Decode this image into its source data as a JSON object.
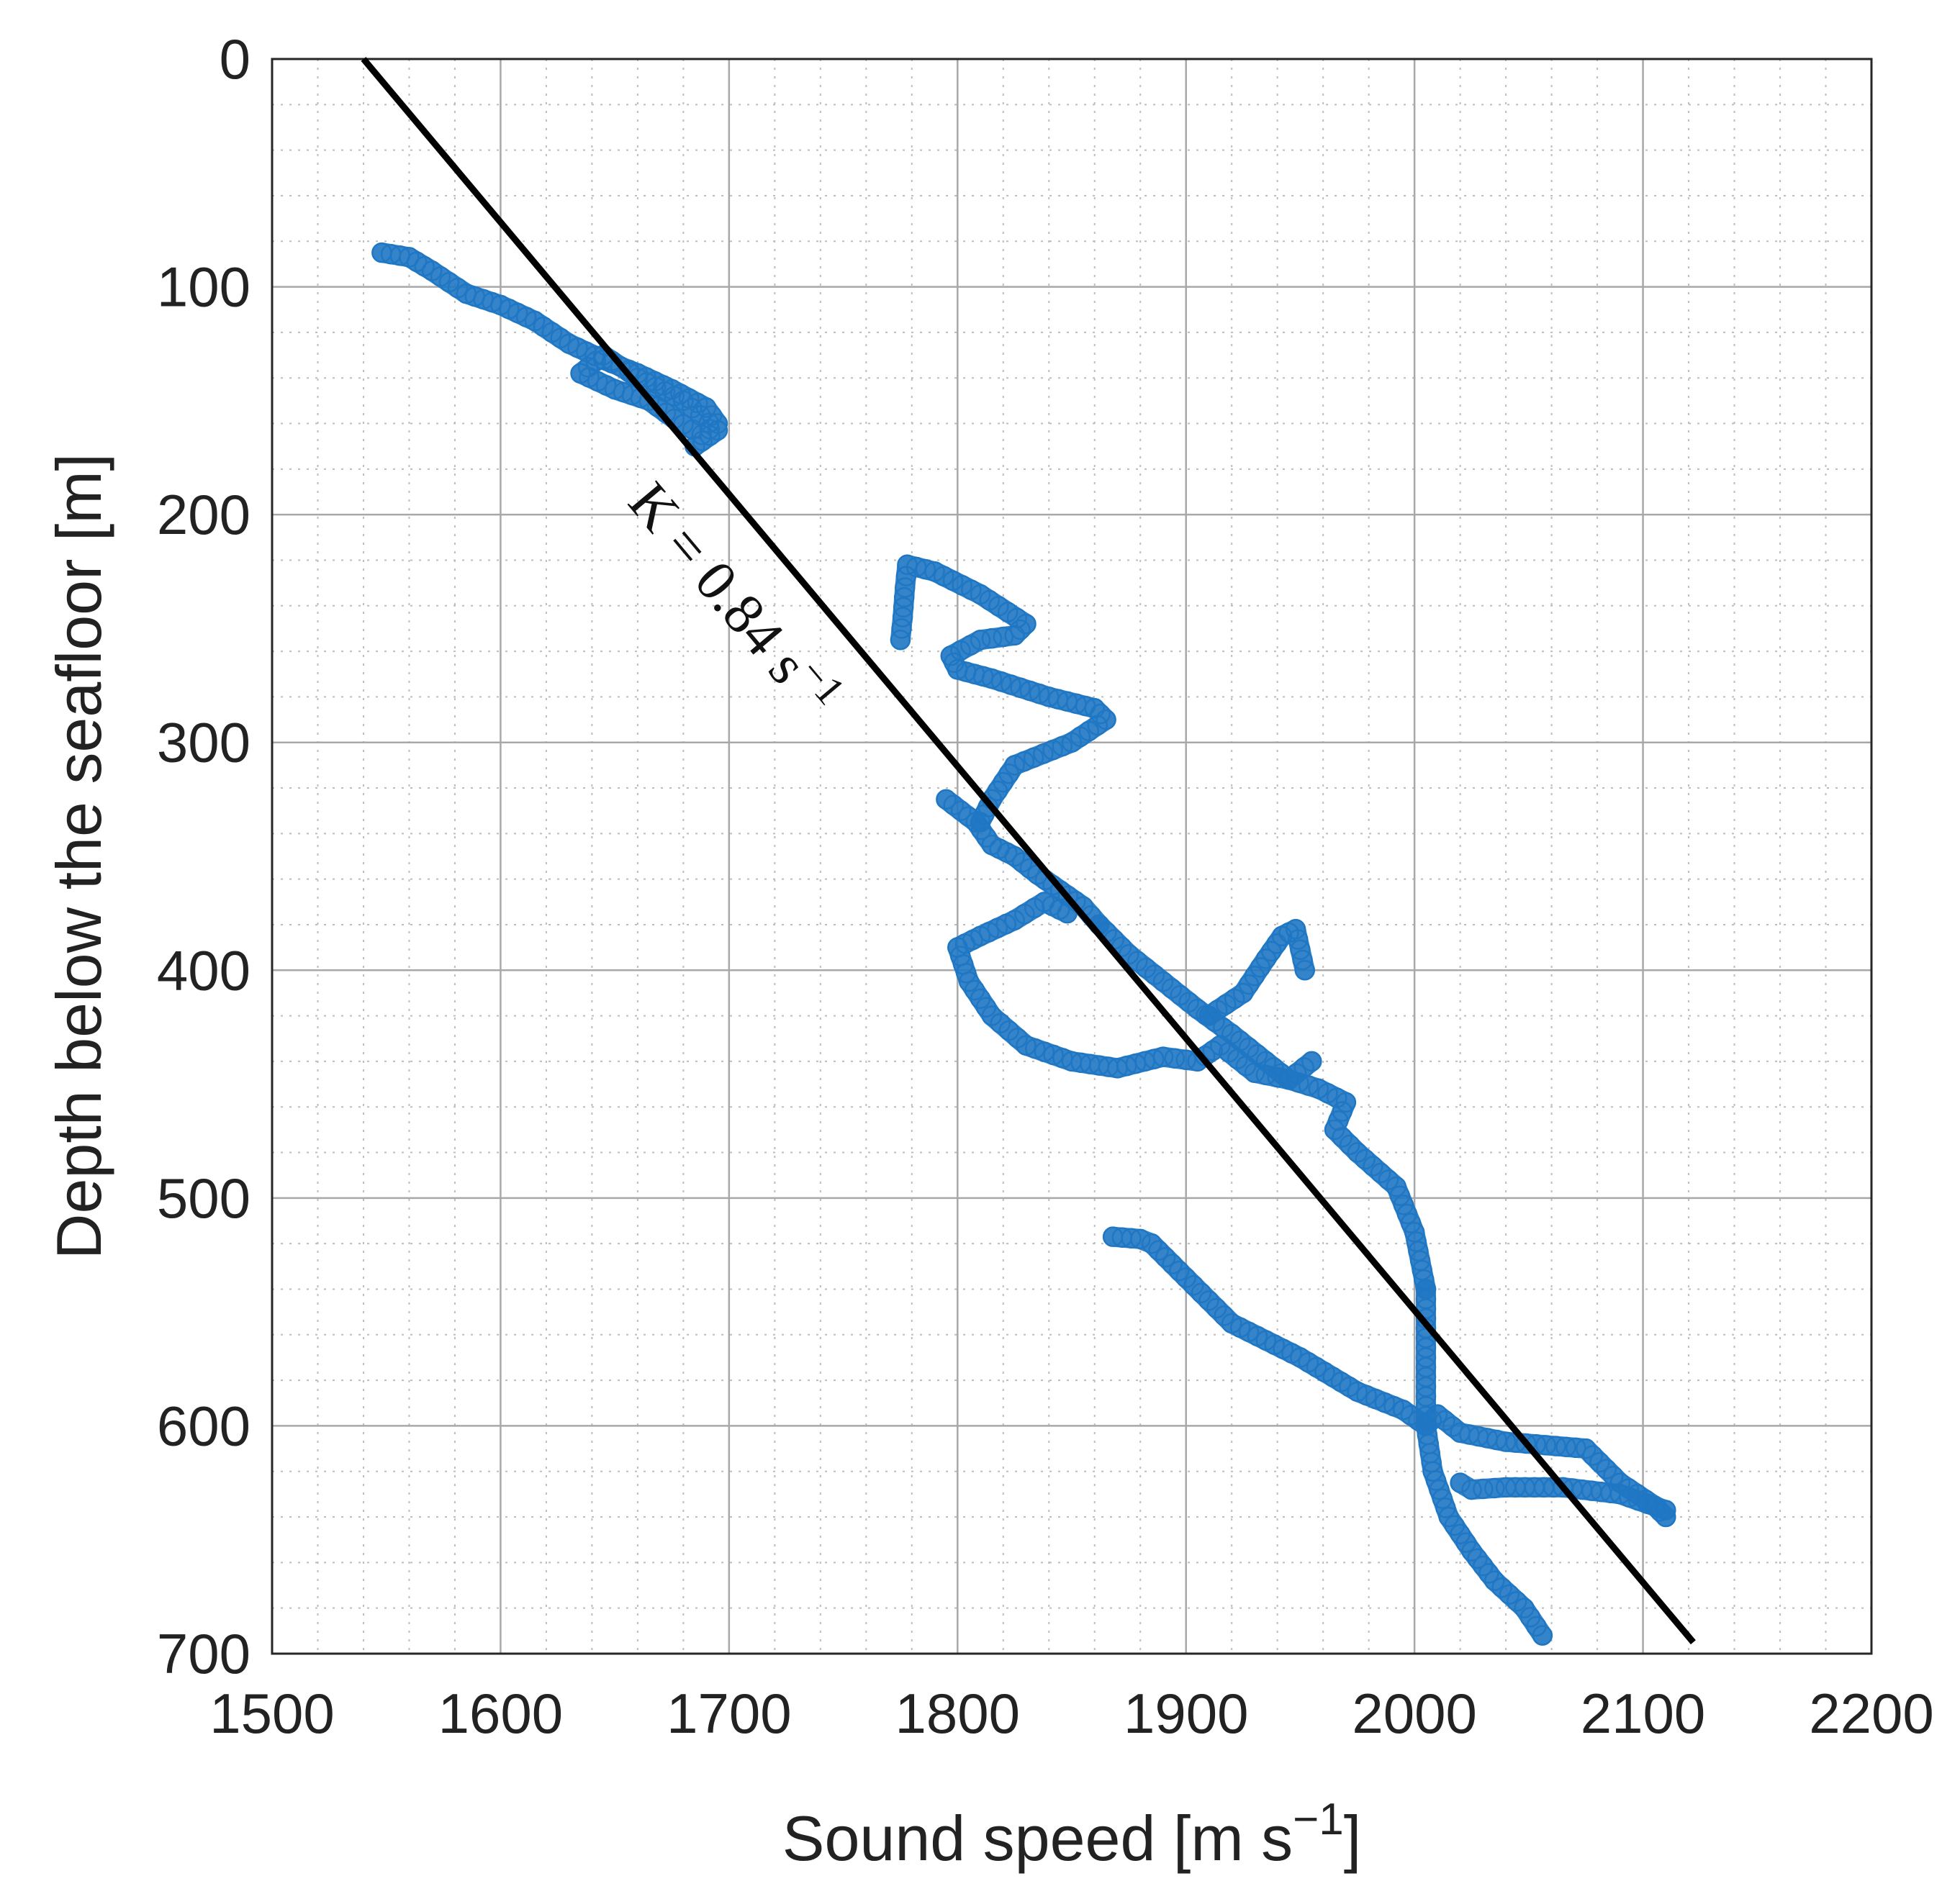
{
  "chart_data": {
    "type": "scatter",
    "title": "",
    "xlabel": "Sound speed [m s",
    "xlabel_sup": "−1",
    "xlabel_end": "]",
    "ylabel": "Depth below the seafloor [m]",
    "xlim": [
      1500,
      2200
    ],
    "ylim": [
      0,
      700
    ],
    "y_reversed": true,
    "xticks": [
      "1500",
      "1600",
      "1700",
      "1800",
      "1900",
      "2000",
      "2100",
      "2200"
    ],
    "yticks": [
      "0",
      "100",
      "200",
      "300",
      "400",
      "500",
      "600",
      "700"
    ],
    "grid": true,
    "minor_grid": true,
    "colors": {
      "series": "#1f77c4",
      "fit": "#000000",
      "grid": "#bdbdbd"
    },
    "fit_line": {
      "x": [
        1540,
        2122
      ],
      "y": [
        0,
        695
      ]
    },
    "annotation": {
      "text": "K = 0.84 s",
      "sup": "−1"
    },
    "series": [
      {
        "segments": [
          {
            "x": [
              1548,
              1560,
              1570,
              1585,
              1600,
              1615,
              1630,
              1645,
              1660,
              1675,
              1690,
              1695,
              1688,
              1676,
              1665,
              1650,
              1635,
              1645,
              1660,
              1680,
              1695,
              1685
            ],
            "y": [
              85,
              87,
              93,
              103,
              108,
              115,
              125,
              132,
              138,
              145,
              153,
              160,
              165,
              158,
              150,
              145,
              138,
              130,
              140,
              150,
              163,
              170
            ]
          },
          {
            "x": [
              1775,
              1776,
              1777,
              1778,
              1790,
              1810,
              1830,
              1825,
              1810,
              1797,
              1800,
              1815,
              1840,
              1860,
              1865,
              1850,
              1825,
              1815,
              1810
            ],
            "y": [
              255,
              245,
              232,
              222,
              225,
              235,
              248,
              253,
              255,
              262,
              268,
              272,
              280,
              285,
              290,
              300,
              310,
              325,
              335
            ]
          },
          {
            "x": [
              1795,
              1808,
              1815,
              1825,
              1835,
              1845,
              1855,
              1862
            ],
            "y": [
              325,
              335,
              345,
              350,
              358,
              365,
              372,
              380
            ]
          },
          {
            "x": [
              1848,
              1838,
              1825,
              1810,
              1800,
              1805,
              1815,
              1830,
              1850,
              1870,
              1890,
              1905,
              1915,
              1930,
              1945,
              1955
            ],
            "y": [
              375,
              370,
              378,
              385,
              390,
              405,
              420,
              433,
              440,
              443,
              438,
              440,
              433,
              445,
              448,
              440
            ]
          },
          {
            "x": [
              1862,
              1875,
              1890,
              1905,
              1920,
              1935,
              1945,
              1958,
              1970,
              1965,
              1975,
              1992,
              2000,
              2005
            ],
            "y": [
              380,
              393,
              405,
              417,
              428,
              440,
              448,
              452,
              458,
              470,
              480,
              495,
              515,
              540
            ]
          },
          {
            "x": [
              1910,
              1925,
              1935,
              1942,
              1948,
              1952
            ],
            "y": [
              420,
              410,
              395,
              385,
              382,
              400
            ]
          },
          {
            "x": [
              2005,
              2005,
              2005,
              2008,
              2015,
              2025,
              2035,
              2048,
              2056
            ],
            "y": [
              540,
              570,
              600,
              620,
              640,
              655,
              668,
              680,
              692
            ]
          },
          {
            "x": [
              1868,
              1880,
              1885,
              1900,
              1920,
              1950,
              1975,
              1995,
              2005
            ],
            "y": [
              517,
              518,
              520,
              535,
              555,
              570,
              585,
              593,
              600
            ]
          },
          {
            "x": [
              2005,
              2010,
              2020,
              2040,
              2075,
              2090,
              2105,
              2110
            ],
            "y": [
              600,
              595,
              603,
              607,
              610,
              625,
              635,
              640
            ]
          },
          {
            "x": [
              2110,
              2090,
              2065,
              2040,
              2025,
              2020
            ],
            "y": [
              637,
              630,
              627,
              627,
              628,
              625
            ]
          }
        ]
      }
    ]
  }
}
